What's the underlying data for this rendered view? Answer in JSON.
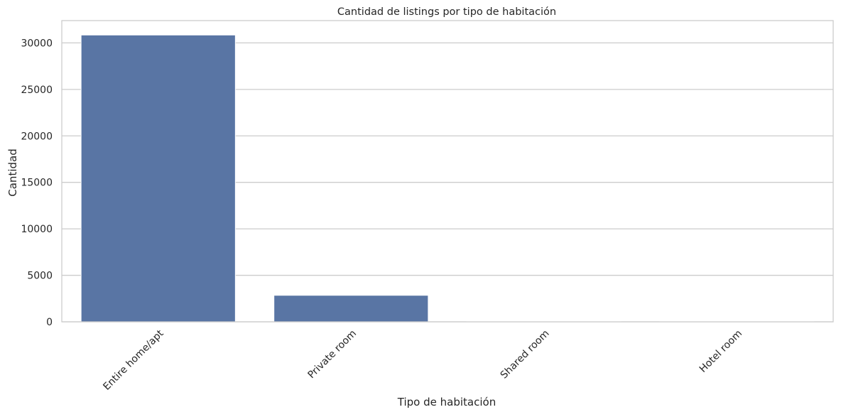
{
  "chart_data": {
    "type": "bar",
    "title": "Cantidad de listings por tipo de habitación",
    "xlabel": "Tipo de habitación",
    "ylabel": "Cantidad",
    "categories": [
      "Entire home/apt",
      "Private room",
      "Shared room",
      "Hotel room"
    ],
    "values": [
      30850,
      2850,
      60,
      40
    ],
    "ylim": [
      0,
      32400
    ],
    "yticks": [
      0,
      5000,
      10000,
      15000,
      20000,
      25000,
      30000
    ],
    "grid": "y",
    "bar_color": "#5975a4",
    "grid_color": "#cccccc",
    "frame_color": "#cccccc"
  }
}
